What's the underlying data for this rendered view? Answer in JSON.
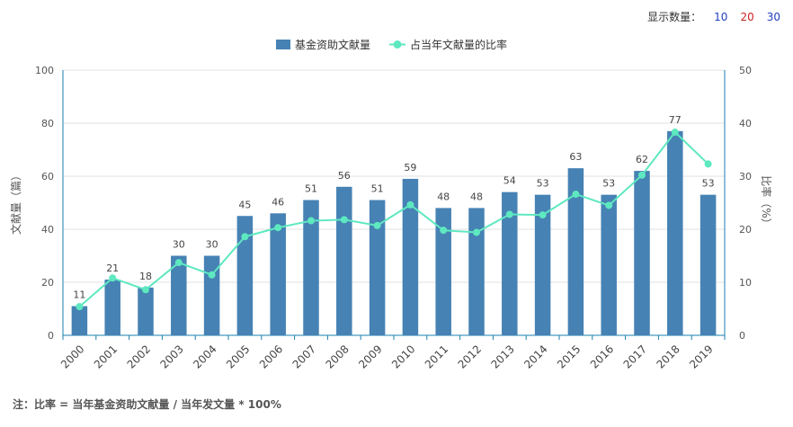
{
  "toolbar": {
    "label": "显示数量：",
    "options": [
      {
        "label": "10",
        "color": "#1f3fbf"
      },
      {
        "label": "20",
        "color": "#cc2222"
      },
      {
        "label": "30",
        "color": "#1f3fbf"
      }
    ]
  },
  "footnote": "注：比率 = 当年基金资助文献量 / 当年发文量 * 100%",
  "colors": {
    "bar": "#4682b4",
    "line": "#5ee8c0",
    "axis": "#1a7fb0",
    "grid": "#e0e0e0"
  },
  "chart_data": {
    "type": "bar",
    "categories": [
      "2000",
      "2001",
      "2002",
      "2003",
      "2004",
      "2005",
      "2006",
      "2007",
      "2008",
      "2009",
      "2010",
      "2011",
      "2012",
      "2013",
      "2014",
      "2015",
      "2016",
      "2017",
      "2018",
      "2019"
    ],
    "series": [
      {
        "name": "基金资助文献量",
        "type": "bar",
        "axis": "left",
        "values": [
          11,
          21,
          18,
          30,
          30,
          45,
          46,
          51,
          56,
          51,
          59,
          48,
          48,
          54,
          53,
          63,
          53,
          62,
          77,
          53
        ]
      },
      {
        "name": "占当年文献量的比率",
        "type": "line",
        "axis": "right",
        "values": [
          5.4,
          10.8,
          8.6,
          13.7,
          11.4,
          18.6,
          20.3,
          21.6,
          21.8,
          20.7,
          24.6,
          19.8,
          19.4,
          22.8,
          22.7,
          26.6,
          24.5,
          30.2,
          38.3,
          32.3
        ]
      }
    ],
    "ylabel": "文献量（篇）",
    "y2label": "比率（%）",
    "ylim": [
      0,
      100
    ],
    "y2lim": [
      0,
      50
    ],
    "yticks": [
      0,
      20,
      40,
      60,
      80,
      100
    ],
    "y2ticks": [
      0,
      10,
      20,
      30,
      40,
      50
    ],
    "grid": true,
    "legend_position": "top-center"
  }
}
